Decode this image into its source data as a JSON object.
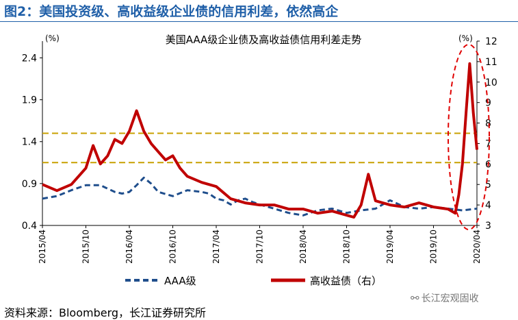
{
  "figure_title": "图2：美国投资级、高收益级企业债的信用利差，依然高企",
  "source": "资料来源：Bloomberg，长江证券研究所",
  "watermark": "长江宏观固收",
  "colors": {
    "title": "#1f5fa8",
    "aaa": "#1f4e8c",
    "hy": "#c00000",
    "ref": "#c8a000",
    "highlight": "#e00000"
  },
  "chart_data": {
    "type": "line",
    "title": "美国AAA级企业债及高收益债信用利差走势",
    "left_unit": "(%)",
    "right_unit": "(%)",
    "left_ylim": [
      0.4,
      2.6
    ],
    "right_ylim": [
      3,
      12
    ],
    "left_ticks": [
      "0.4",
      "0.9",
      "1.4",
      "1.9",
      "2.4"
    ],
    "right_ticks": [
      "3",
      "4",
      "5",
      "6",
      "7",
      "8",
      "9",
      "10",
      "11",
      "12"
    ],
    "x_ticks": [
      "2015/04",
      "2015/10",
      "2016/04",
      "2016/10",
      "2017/04",
      "2017/10",
      "2018/04",
      "2018/10",
      "2019/04",
      "2019/10",
      "2020/04"
    ],
    "x_start": "2015/04",
    "x_end": "2020/04",
    "reference_lines": [
      {
        "axis": "left",
        "value": 1.5
      },
      {
        "axis": "left",
        "value": 1.15
      }
    ],
    "series": [
      {
        "name": "AAA级",
        "axis": "left",
        "style": "dashed",
        "x": [
          0,
          2,
          4,
          6,
          8,
          10,
          11,
          12,
          13,
          14,
          15,
          16,
          18,
          20,
          22,
          23,
          24,
          25,
          26,
          27,
          28,
          29,
          30,
          32,
          34,
          36,
          38,
          40,
          42,
          44,
          46,
          48,
          50,
          52,
          54,
          56,
          58,
          60
        ],
        "values": [
          0.72,
          0.75,
          0.82,
          0.88,
          0.88,
          0.8,
          0.78,
          0.8,
          0.88,
          0.97,
          0.9,
          0.8,
          0.75,
          0.82,
          0.8,
          0.78,
          0.72,
          0.7,
          0.65,
          0.7,
          0.72,
          0.68,
          0.65,
          0.6,
          0.55,
          0.52,
          0.58,
          0.6,
          0.55,
          0.58,
          0.6,
          0.7,
          0.62,
          0.6,
          0.62,
          0.6,
          0.58,
          0.6
        ]
      },
      {
        "name": "高收益债（右）",
        "axis": "right",
        "style": "solid",
        "x": [
          0,
          2,
          4,
          6,
          7,
          8,
          9,
          10,
          11,
          12,
          13,
          14,
          15,
          16,
          17,
          18,
          19,
          20,
          22,
          24,
          26,
          28,
          30,
          32,
          34,
          36,
          38,
          40,
          42,
          43,
          44,
          45,
          46,
          48,
          50,
          52,
          54,
          56,
          57,
          57.5,
          58,
          58.5,
          59,
          59.5,
          60
        ],
        "values": [
          5.0,
          4.7,
          5.0,
          5.8,
          6.9,
          6.0,
          6.4,
          7.2,
          7.0,
          7.6,
          8.6,
          7.6,
          7.0,
          6.6,
          6.2,
          6.4,
          5.8,
          5.4,
          5.1,
          4.9,
          4.3,
          4.1,
          4.0,
          4.0,
          3.8,
          3.8,
          3.6,
          3.7,
          3.5,
          3.4,
          4.0,
          5.5,
          4.2,
          4.0,
          3.9,
          4.1,
          3.9,
          3.8,
          3.6,
          4.5,
          6.0,
          8.5,
          10.9,
          8.5,
          6.7
        ]
      }
    ]
  }
}
